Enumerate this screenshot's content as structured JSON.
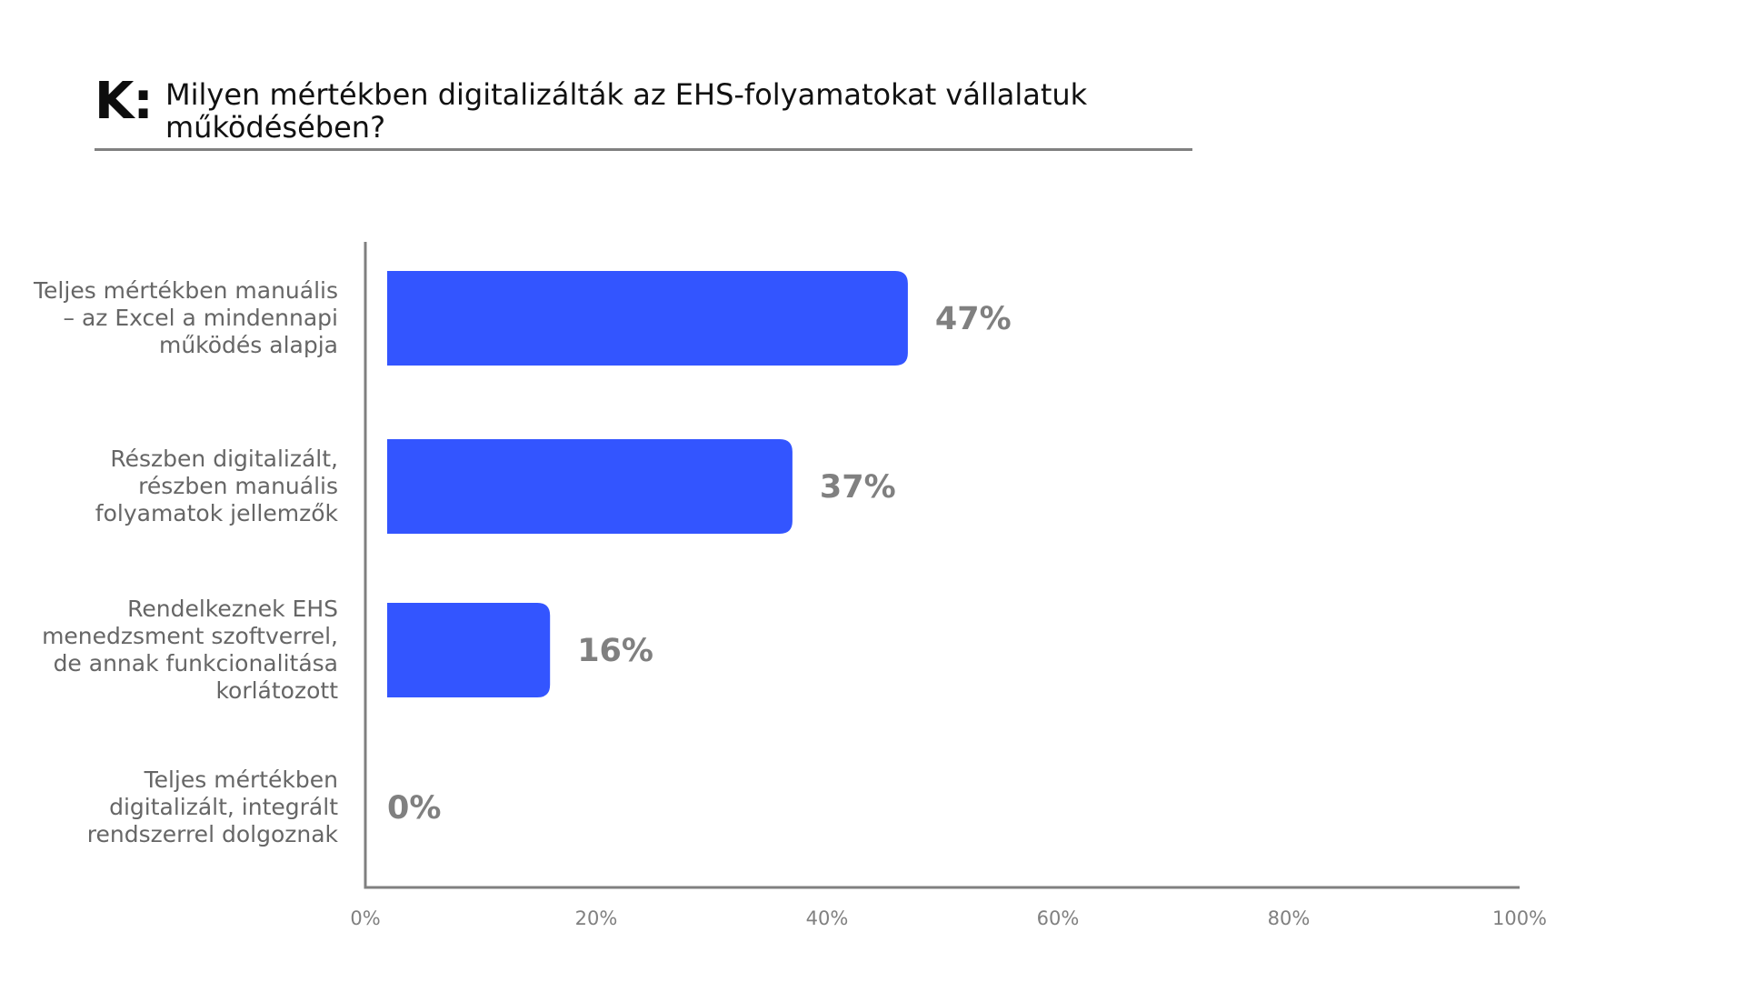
{
  "question": {
    "prefix": "K:",
    "text": "Milyen mértékben digitalizálták az EHS-folyamatokat vállalatuk működésében?"
  },
  "colors": {
    "bar": "#3355ff",
    "axis": "#808080",
    "label": "#666666"
  },
  "chart_data": {
    "type": "bar",
    "orientation": "horizontal",
    "title": "",
    "xlabel": "",
    "ylabel": "",
    "xlim": [
      0,
      100
    ],
    "grid": false,
    "categories": [
      "Teljes mértékben manuális\n– az Excel a mindennapi\nműködés alapja",
      "Részben digitalizált,\nrészben manuális\nfolyamatok jellemzők",
      "Rendelkeznek EHS\nmenedzsment szoftverrel,\nde annak funkcionalitása\nkorlátozott",
      "Teljes mértékben\ndigitalizált, integrált\nrendszerrel dolgoznak"
    ],
    "values": [
      47,
      37,
      16,
      0
    ],
    "value_labels": [
      "47%",
      "37%",
      "16%",
      "0%"
    ],
    "ticks": [
      {
        "value": 0,
        "label": "0%"
      },
      {
        "value": 20,
        "label": "20%"
      },
      {
        "value": 40,
        "label": "40%"
      },
      {
        "value": 60,
        "label": "60%"
      },
      {
        "value": 80,
        "label": "80%"
      },
      {
        "value": 100,
        "label": "100%"
      }
    ]
  }
}
